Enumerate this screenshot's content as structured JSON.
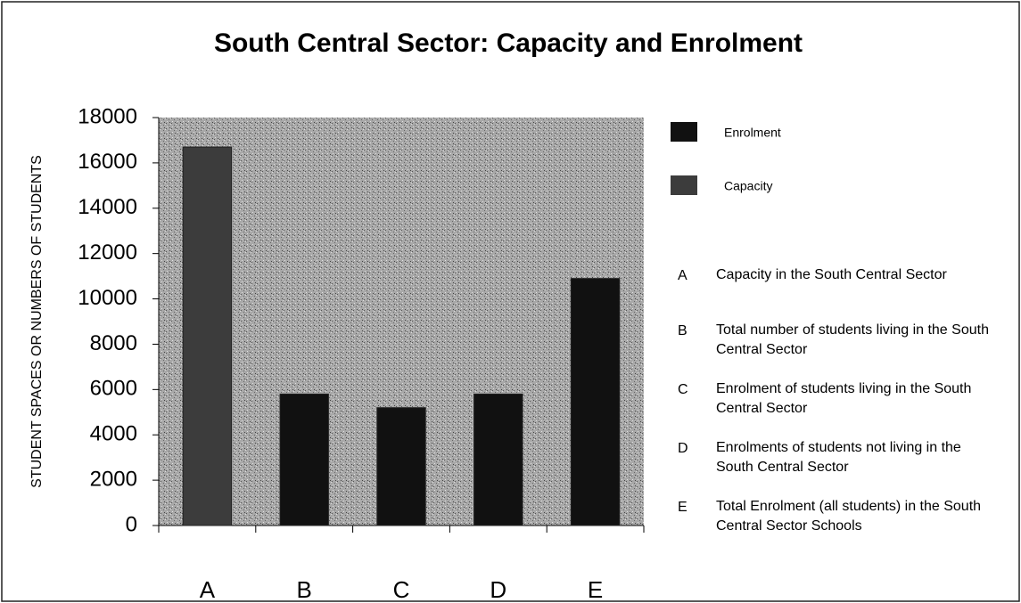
{
  "chart_data": {
    "type": "bar",
    "title": "South Central Sector: Capacity and Enrolment",
    "y_label": "STUDENT SPACES OR NUMBERS OF STUDENTS",
    "categories": [
      "A",
      "B",
      "C",
      "D",
      "E"
    ],
    "series": [
      {
        "name": "Enrolment",
        "color": "#111111",
        "values": [
          null,
          5800,
          5200,
          5800,
          10900
        ]
      },
      {
        "name": "Capacity",
        "color": "#3c3c3c",
        "values": [
          16700,
          null,
          null,
          null,
          null
        ]
      }
    ],
    "ylim": [
      0,
      18000
    ],
    "yticks": [
      0,
      2000,
      4000,
      6000,
      8000,
      10000,
      12000,
      14000,
      16000,
      18000
    ],
    "notes": [
      {
        "label": "A",
        "text": "Capacity in the South Central Sector"
      },
      {
        "label": "B",
        "text": "Total number of students living in the South Central Sector"
      },
      {
        "label": "C",
        "text": "Enrolment of students living in the South Central Sector"
      },
      {
        "label": "D",
        "text": "Enrolments of students not living in the South Central Sector"
      },
      {
        "label": "E",
        "text": "Total Enrolment (all students) in the South Central Sector Schools"
      }
    ]
  }
}
